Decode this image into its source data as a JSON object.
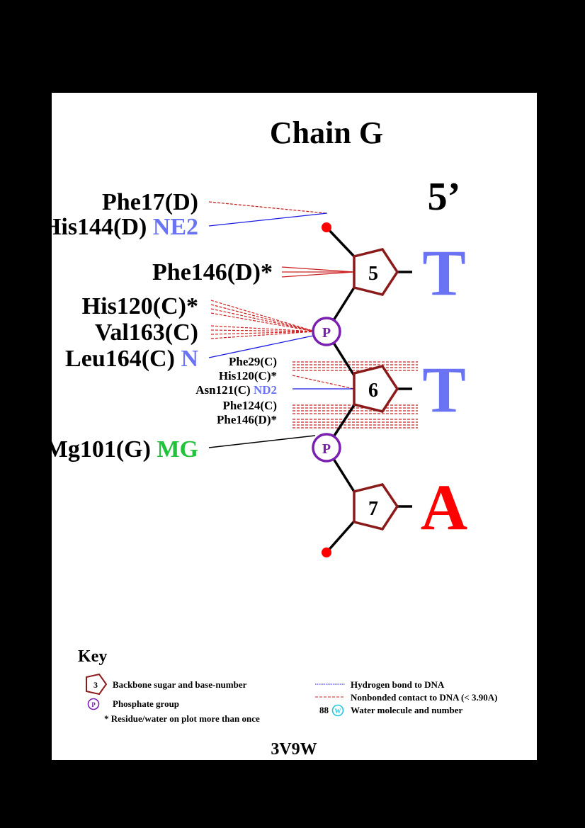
{
  "title": "Chain G",
  "strand_end": "5’",
  "nucleotides": [
    {
      "number": "5",
      "base": "T",
      "base_color": "#6b73f5"
    },
    {
      "number": "6",
      "base": "T",
      "base_color": "#6b73f5"
    },
    {
      "number": "7",
      "base": "A",
      "base_color": "#ff0000"
    }
  ],
  "phosphate_label": "P",
  "residues": [
    {
      "name": "Phe17(D)",
      "atom": "",
      "atom_color": "",
      "contact": "nonbonded"
    },
    {
      "name": "His144(D)",
      "atom": "NE2",
      "atom_color": "#6b73f5",
      "contact": "hydrogen"
    },
    {
      "name": "Phe146(D)*",
      "atom": "",
      "atom_color": "",
      "contact": "nonbonded"
    },
    {
      "name": "His120(C)*",
      "atom": "",
      "atom_color": "",
      "contact": "nonbonded"
    },
    {
      "name": "Val163(C)",
      "atom": "",
      "atom_color": "",
      "contact": "nonbonded"
    },
    {
      "name": "Leu164(C)",
      "atom": "N",
      "atom_color": "#6b73f5",
      "contact": "hydrogen"
    },
    {
      "name": "Phe29(C)",
      "atom": "",
      "atom_color": "",
      "contact": "nonbonded"
    },
    {
      "name": "His120(C)*",
      "atom": "",
      "atom_color": "",
      "contact": "nonbonded"
    },
    {
      "name": "Asn121(C)",
      "atom": "ND2",
      "atom_color": "#6b73f5",
      "contact": "hydrogen"
    },
    {
      "name": "Phe124(C)",
      "atom": "",
      "atom_color": "",
      "contact": "nonbonded"
    },
    {
      "name": "Phe146(D)*",
      "atom": "",
      "atom_color": "",
      "contact": "nonbonded"
    },
    {
      "name": "Mg101(G)",
      "atom": "MG",
      "atom_color": "#22c33a",
      "contact": "other"
    }
  ],
  "key": {
    "heading": "Key",
    "sugar_sample": "3",
    "sugar_label": "Backbone sugar and base-number",
    "phosphate_sample": "P",
    "phosphate_label": "Phosphate group",
    "star_note": "* Residue/water on plot more than once",
    "hbond_label": "Hydrogen bond to DNA",
    "nonbonded_label": "Nonbonded contact to DNA (< 3.90A)",
    "water_number": "88",
    "water_sample": "W",
    "water_label": "Water molecule and number"
  },
  "pdb_id": "3V9W",
  "colors": {
    "sugar": "#8b1a1a",
    "phosphate": "#7a1fb0",
    "hbond": "#1a1ae6",
    "nonbonded": "#cc2222",
    "terminal": "#ff0000",
    "water": "#22c8e0"
  }
}
